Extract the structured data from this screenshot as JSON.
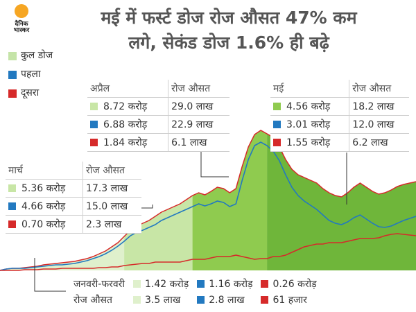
{
  "logo": {
    "line1": "दैनिक",
    "line2": "भास्कर"
  },
  "headline": {
    "line1": "मई में फर्स्ट डोज रोज औसत 47% कम",
    "line2": "लगे, सेकंड डोज 1.6% ही बढ़े"
  },
  "legend": [
    {
      "label": "कुल डोज",
      "color": "#c5e4a8"
    },
    {
      "label": "पहला",
      "color": "#2279c0"
    },
    {
      "label": "दूसरा",
      "color": "#d62a2a"
    }
  ],
  "colors": {
    "total_jan": "#dff0cc",
    "total_mar": "#c8e6a6",
    "total_apr": "#8fcb4f",
    "total_may": "#6fb63a",
    "first": "#2279c0",
    "second": "#d62a2a"
  },
  "tables": {
    "march": {
      "month": "मार्च",
      "avg_header": "रोज औसत",
      "rows": [
        {
          "total": "5.36 करोड़",
          "avg": "17.3 लाख"
        },
        {
          "total": "4.66 करोड़",
          "avg": "15.0 लाख"
        },
        {
          "total": "0.70 करोड़",
          "avg": "2.3 लाख"
        }
      ]
    },
    "april": {
      "month": "अप्रैल",
      "avg_header": "रोज औसत",
      "rows": [
        {
          "total": "8.72 करोड़",
          "avg": "29.0 लाख"
        },
        {
          "total": "6.88 करोड़",
          "avg": "22.9 लाख"
        },
        {
          "total": "1.84 करोड़",
          "avg": "6.1 लाख"
        }
      ]
    },
    "may": {
      "month": "मई",
      "avg_header": "रोज औसत",
      "rows": [
        {
          "total": "4.56 करोड़",
          "avg": "18.2 लाख"
        },
        {
          "total": "3.01 करोड़",
          "avg": "12.0 लाख"
        },
        {
          "total": "1.55 करोड़",
          "avg": "6.2 लाख"
        }
      ]
    },
    "janfeb": {
      "month": "जनवरी-फरवरी",
      "avg_label": "रोज औसत",
      "totals": [
        "1.42 करोड़",
        "1.16 करोड़",
        "0.26 करोड़"
      ],
      "avgs": [
        "3.5 लाख",
        "2.8 लाख",
        "61 हजार"
      ]
    }
  },
  "chart_data": {
    "type": "area",
    "series": [
      {
        "name": "कुल डोज",
        "values": [
          0,
          2,
          3,
          3,
          4,
          5,
          6,
          8,
          9,
          10,
          11,
          12,
          13,
          15,
          17,
          20,
          24,
          28,
          34,
          40,
          49,
          58,
          64,
          68,
          72,
          78,
          84,
          88,
          92,
          96,
          102,
          108,
          112,
          109,
          114,
          120,
          118,
          112,
          118,
          150,
          178,
          196,
          202,
          197,
          192,
          178,
          160,
          146,
          138,
          134,
          130,
          126,
          118,
          112,
          108,
          106,
          112,
          120,
          126,
          120,
          114,
          110,
          112,
          116,
          121,
          124,
          126,
          128
        ]
      },
      {
        "name": "पहला",
        "values": [
          0,
          2,
          3,
          3,
          3,
          4,
          5,
          6,
          7,
          8,
          8,
          9,
          10,
          12,
          14,
          17,
          20,
          24,
          29,
          35,
          42,
          50,
          55,
          58,
          62,
          66,
          72,
          76,
          80,
          84,
          88,
          92,
          96,
          93,
          96,
          100,
          98,
          92,
          96,
          130,
          160,
          180,
          185,
          180,
          172,
          158,
          138,
          120,
          108,
          100,
          94,
          88,
          80,
          72,
          68,
          66,
          70,
          76,
          80,
          74,
          68,
          63,
          62,
          64,
          68,
          72,
          75,
          78
        ]
      },
      {
        "name": "दूसरा",
        "values": [
          0,
          0,
          0,
          0,
          1,
          1,
          1,
          2,
          2,
          2,
          3,
          3,
          3,
          3,
          3,
          3,
          4,
          4,
          5,
          5,
          7,
          8,
          9,
          10,
          10,
          12,
          12,
          12,
          12,
          12,
          14,
          16,
          16,
          16,
          18,
          20,
          20,
          20,
          22,
          20,
          18,
          16,
          17,
          17,
          20,
          20,
          22,
          26,
          30,
          34,
          36,
          38,
          38,
          40,
          40,
          40,
          42,
          44,
          46,
          46,
          46,
          47,
          50,
          52,
          53,
          52,
          51,
          50
        ]
      }
    ],
    "periods": [
      {
        "label": "जनवरी-फरवरी",
        "start": 0,
        "end": 20
      },
      {
        "label": "मार्च",
        "start": 20,
        "end": 31
      },
      {
        "label": "अप्रैल",
        "start": 31,
        "end": 43
      },
      {
        "label": "मई",
        "start": 43,
        "end": 67
      }
    ],
    "ylim": [
      0,
      210
    ]
  }
}
